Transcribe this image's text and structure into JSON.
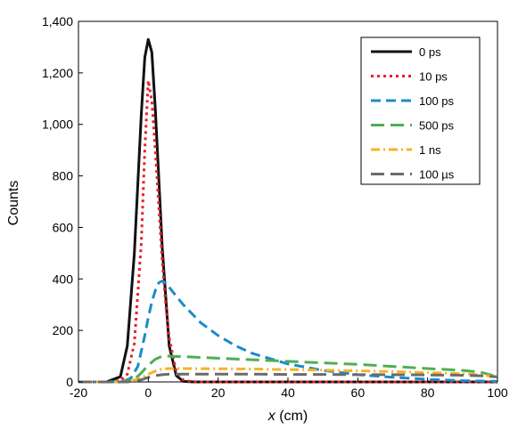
{
  "chart_data": {
    "type": "line",
    "title": "",
    "xlabel": {
      "var": "x",
      "unit": " (cm)"
    },
    "ylabel": "Counts",
    "xlim": [
      -20,
      100
    ],
    "ylim": [
      0,
      1400
    ],
    "x_ticks": [
      -20,
      0,
      20,
      40,
      60,
      80,
      100
    ],
    "y_ticks": [
      0,
      200,
      400,
      600,
      800,
      1000,
      1200,
      1400
    ],
    "y_tick_labels": [
      "0",
      "200",
      "400",
      "600",
      "800",
      "1,000",
      "1,200",
      "1,400"
    ],
    "grid": false,
    "legend_position": "top-right",
    "series": [
      {
        "name": "0 ps",
        "color": "#111111",
        "dash": "solid",
        "x": [
          -20,
          -12,
          -8,
          -6,
          -4,
          -2,
          -1,
          0,
          1,
          2,
          4,
          6,
          8,
          10,
          13,
          20,
          100
        ],
        "y": [
          0,
          0,
          20,
          140,
          500,
          1040,
          1260,
          1330,
          1280,
          1060,
          520,
          140,
          25,
          2,
          0,
          0,
          0
        ]
      },
      {
        "name": "10 ps",
        "color": "#e8202a",
        "dash": "dot",
        "x": [
          -20,
          -12,
          -8,
          -6,
          -4,
          -2,
          -1,
          0,
          1,
          2,
          3,
          4,
          5,
          6,
          8,
          10,
          12,
          14,
          20,
          100
        ],
        "y": [
          0,
          0,
          5,
          30,
          150,
          540,
          900,
          1170,
          1090,
          900,
          680,
          470,
          300,
          170,
          40,
          8,
          2,
          0,
          0,
          0
        ]
      },
      {
        "name": "100 ps",
        "color": "#1a8cc9",
        "dash": "dash",
        "x": [
          -20,
          -10,
          -7,
          -5,
          -3,
          -1,
          0,
          1,
          2,
          3,
          4,
          5,
          7,
          10,
          15,
          20,
          25,
          30,
          40,
          50,
          60,
          70,
          80,
          90,
          100
        ],
        "y": [
          0,
          0,
          3,
          15,
          60,
          180,
          250,
          310,
          355,
          385,
          392,
          385,
          350,
          300,
          230,
          180,
          140,
          110,
          70,
          45,
          28,
          18,
          10,
          5,
          2
        ]
      },
      {
        "name": "500 ps",
        "color": "#4caf50",
        "dash": "longdash",
        "x": [
          -20,
          -8,
          -4,
          -2,
          0,
          2,
          4,
          5,
          6,
          10,
          20,
          30,
          40,
          50,
          60,
          70,
          80,
          90,
          95,
          98,
          100
        ],
        "y": [
          0,
          0,
          10,
          35,
          65,
          88,
          100,
          102,
          100,
          98,
          92,
          86,
          80,
          74,
          68,
          60,
          52,
          45,
          38,
          28,
          15
        ]
      },
      {
        "name": "1 ns",
        "color": "#f5b324",
        "dash": "dashdot",
        "x": [
          -20,
          -6,
          -2,
          0,
          2,
          4,
          6,
          10,
          20,
          30,
          40,
          50,
          60,
          70,
          80,
          90,
          95,
          100
        ],
        "y": [
          0,
          0,
          15,
          30,
          42,
          50,
          52,
          52,
          51,
          50,
          48,
          46,
          43,
          40,
          36,
          32,
          28,
          20
        ]
      },
      {
        "name": "100 µs",
        "color": "#6b6b6b",
        "dash": "longdash",
        "x": [
          -20,
          -6,
          -2,
          0,
          2,
          4,
          6,
          10,
          20,
          30,
          40,
          50,
          60,
          70,
          80,
          90,
          95,
          100
        ],
        "y": [
          0,
          0,
          8,
          18,
          25,
          28,
          30,
          30,
          30,
          30,
          29,
          29,
          28,
          28,
          27,
          26,
          24,
          20
        ]
      }
    ]
  }
}
